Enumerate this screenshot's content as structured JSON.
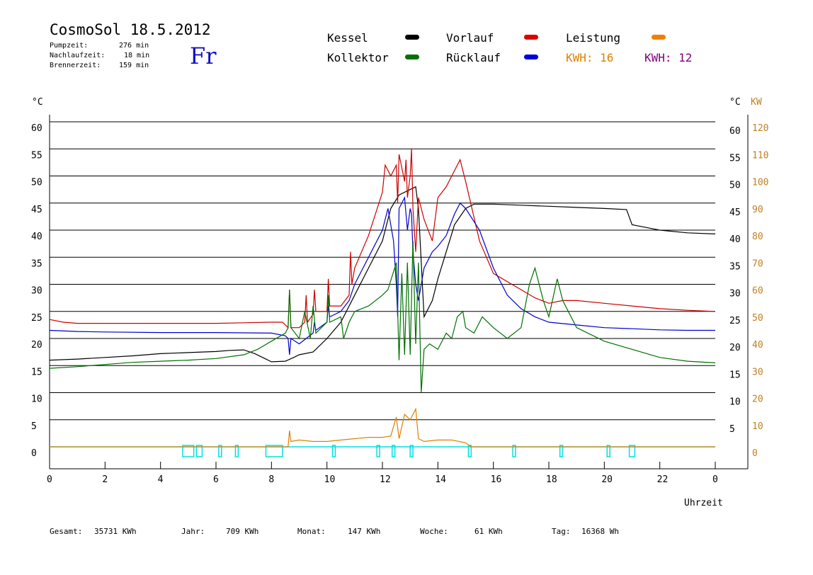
{
  "header": {
    "title": "CosmoSol 18.5.2012",
    "day": "Fr",
    "pumpzeit_label": "Pumpzeit:",
    "pumpzeit_value": "276 min",
    "nachlauf_label": "Nachlaufzeit:",
    "nachlauf_value": "18 min",
    "brenner_label": "Brennerzeit:",
    "brenner_value": "159 min"
  },
  "legend": {
    "kessel": "Kessel",
    "kollektor": "Kollektor",
    "vorlauf": "Vorlauf",
    "ruecklauf": "Rücklauf",
    "leistung": "Leistung",
    "kwh1": "KWH: 16",
    "kwh2": "KWH: 12"
  },
  "footer": {
    "gesamt_label": "Gesamt:",
    "gesamt_value": "35731 KWh",
    "jahr_label": "Jahr:",
    "jahr_value": "709 KWh",
    "monat_label": "Monat:",
    "monat_value": "147 KWh",
    "woche_label": "Woche:",
    "woche_value": "61 KWh",
    "tag_label": "Tag:",
    "tag_value": "16368 Wh"
  },
  "chart_data": {
    "type": "line",
    "xlabel": "Uhrzeit",
    "ylabel_left": "°C",
    "ylabel_right_temp": "°C",
    "ylabel_right_power": "KW",
    "xlim": [
      0,
      24
    ],
    "ylim": [
      0,
      60
    ],
    "xticks": [
      "0",
      "2",
      "4",
      "6",
      "8",
      "10",
      "12",
      "14",
      "16",
      "18",
      "20",
      "22",
      "0"
    ],
    "yticks_left": [
      "0",
      "5",
      "10",
      "15",
      "20",
      "25",
      "30",
      "35",
      "40",
      "45",
      "50",
      "55",
      "60"
    ],
    "yticks_right_temp": [
      "5",
      "10",
      "15",
      "20",
      "25",
      "30",
      "35",
      "40",
      "45",
      "50",
      "55",
      "60"
    ],
    "yticks_right_power": [
      "0",
      "10",
      "20",
      "30",
      "40",
      "50",
      "60",
      "70",
      "80",
      "90",
      "100",
      "110",
      "120"
    ],
    "grid": true,
    "colors": {
      "kessel": "#000000",
      "vorlauf": "#cc0000",
      "ruecklauf": "#0000cc",
      "kollektor": "#007000",
      "leistung": "#e08000",
      "kwh2": "#800080",
      "pump": "#00e0e0",
      "axis_power": "#c08020"
    },
    "series": [
      {
        "name": "Kessel",
        "color": "#000000",
        "x": [
          0,
          1,
          2,
          3,
          4,
          5,
          6,
          6.5,
          7,
          7.4,
          7.8,
          8,
          8.5,
          8.8,
          9,
          9.5,
          10,
          10.5,
          11,
          11.5,
          12,
          12.3,
          12.6,
          13,
          13.2,
          13.3,
          13.5,
          13.8,
          14,
          14.3,
          14.6,
          15,
          15.3,
          16,
          17,
          18,
          19,
          20,
          20.8,
          21,
          21.5,
          22,
          23,
          24
        ],
        "y": [
          16,
          16.2,
          16.5,
          16.8,
          17.2,
          17.4,
          17.6,
          17.8,
          17.9,
          17.2,
          16.2,
          15.7,
          15.8,
          16.5,
          17,
          17.5,
          20,
          23,
          28,
          33,
          38,
          44,
          46.5,
          47.5,
          48,
          44,
          24,
          27,
          31,
          36,
          41,
          44,
          44.8,
          44.8,
          44.6,
          44.4,
          44.2,
          44,
          43.8,
          41,
          40.5,
          40,
          39.5,
          39.3
        ]
      },
      {
        "name": "Vorlauf",
        "color": "#cc0000",
        "x": [
          0,
          0.5,
          1,
          2,
          4,
          6,
          7,
          8,
          8.4,
          8.6,
          8.65,
          8.7,
          9,
          9.2,
          9.25,
          9.3,
          9.5,
          9.55,
          9.6,
          10,
          10.05,
          10.1,
          10.5,
          10.8,
          10.85,
          10.9,
          11,
          11.5,
          12,
          12.1,
          12.3,
          12.5,
          12.55,
          12.6,
          12.8,
          12.85,
          12.9,
          13,
          13.05,
          13.1,
          13.2,
          13.3,
          13.5,
          13.8,
          14,
          14.3,
          14.6,
          14.8,
          15,
          15.5,
          16,
          17,
          17.5,
          18,
          18.5,
          19,
          20,
          21,
          22,
          23,
          24
        ],
        "y": [
          23.5,
          23,
          22.8,
          22.8,
          22.8,
          22.8,
          22.9,
          23,
          23,
          22,
          29,
          22,
          22,
          23,
          28,
          23,
          24.5,
          29,
          25,
          25,
          31,
          26,
          26,
          28,
          36,
          30,
          33,
          39,
          47,
          52,
          50,
          52,
          45,
          54,
          49,
          53,
          46,
          50,
          55,
          44,
          36,
          46,
          42,
          38,
          46,
          48,
          51,
          53,
          49,
          38,
          32,
          29,
          27.5,
          26.5,
          27,
          27,
          26.5,
          26,
          25.5,
          25.2,
          25
        ]
      },
      {
        "name": "Rücklauf",
        "color": "#0000cc",
        "x": [
          0,
          1,
          2,
          4,
          6,
          8,
          8.5,
          8.6,
          8.65,
          8.7,
          9,
          9.5,
          9.55,
          9.6,
          10,
          10.05,
          10.1,
          10.5,
          10.8,
          11,
          11.5,
          12,
          12.2,
          12.4,
          12.5,
          12.55,
          12.6,
          12.8,
          12.9,
          13,
          13.05,
          13.1,
          13.2,
          13.3,
          13.5,
          13.8,
          14,
          14.3,
          14.6,
          14.8,
          15,
          15.5,
          16,
          16.5,
          17,
          17.5,
          18,
          19,
          20,
          21,
          22,
          23,
          24
        ],
        "y": [
          21.5,
          21.3,
          21.2,
          21.1,
          21.1,
          21,
          20.5,
          20,
          17,
          20,
          19,
          21,
          23,
          21.5,
          23,
          26,
          24,
          25,
          27,
          30,
          35,
          40,
          44,
          38,
          30,
          24,
          44,
          46,
          40,
          44,
          43,
          36,
          30,
          27,
          33,
          36,
          37,
          39,
          43,
          45,
          44,
          40,
          33,
          28,
          25.5,
          24,
          23,
          22.5,
          22,
          21.8,
          21.6,
          21.5,
          21.5
        ]
      },
      {
        "name": "Kollektor",
        "color": "#007000",
        "x": [
          0,
          1,
          2,
          3,
          4,
          5,
          6,
          7,
          7.5,
          8,
          8.5,
          8.6,
          8.65,
          8.7,
          9,
          9.2,
          9.4,
          9.5,
          9.6,
          10,
          10.05,
          10.1,
          10.5,
          10.6,
          10.8,
          11,
          11.5,
          12,
          12.2,
          12.5,
          12.6,
          12.7,
          12.8,
          12.9,
          13,
          13.1,
          13.2,
          13.3,
          13.4,
          13.5,
          13.7,
          14,
          14.3,
          14.5,
          14.7,
          14.9,
          15,
          15.3,
          15.6,
          16,
          16.5,
          17,
          17.3,
          17.5,
          17.8,
          18,
          18.3,
          18.5,
          19,
          20,
          21,
          22,
          23,
          24
        ],
        "y": [
          14.5,
          14.8,
          15.2,
          15.6,
          15.8,
          16,
          16.3,
          17,
          18,
          19.5,
          21,
          22,
          29,
          22,
          20,
          25,
          20,
          26,
          21,
          23,
          28,
          23,
          24,
          20,
          23,
          25,
          26,
          28,
          29,
          34,
          16,
          32,
          17,
          34,
          17,
          38,
          19,
          34,
          10,
          18,
          19,
          18,
          21,
          20,
          24,
          25,
          22,
          21,
          24,
          22,
          20,
          22,
          30,
          33,
          27,
          24,
          31,
          27,
          22,
          19.5,
          18,
          16.5,
          15.8,
          15.5
        ]
      },
      {
        "name": "Leistung",
        "color": "#e08000",
        "x": [
          0,
          8,
          8.6,
          8.65,
          8.7,
          9,
          9.5,
          10,
          10.5,
          11,
          11.5,
          12,
          12.3,
          12.5,
          12.6,
          12.8,
          13,
          13.2,
          13.3,
          13.5,
          14,
          14.5,
          15,
          15.2,
          16,
          24
        ],
        "y": [
          0,
          0,
          0,
          6,
          2,
          2.5,
          2,
          2,
          2.5,
          3,
          3.5,
          3.5,
          4,
          11,
          3,
          12,
          10,
          14,
          3,
          2,
          2.5,
          2.5,
          1.5,
          0,
          0,
          0
        ],
        "axis": "KW"
      }
    ],
    "pump_on_intervals": [
      [
        4.8,
        5.2
      ],
      [
        5.3,
        5.5
      ],
      [
        6.1,
        6.2
      ],
      [
        6.7,
        6.8
      ],
      [
        7.8,
        8.4
      ],
      [
        10.2,
        10.3
      ],
      [
        11.8,
        11.9
      ],
      [
        12.35,
        12.45
      ],
      [
        13.0,
        13.1
      ],
      [
        15.1,
        15.2
      ],
      [
        16.7,
        16.8
      ],
      [
        18.4,
        18.5
      ],
      [
        20.1,
        20.2
      ],
      [
        20.9,
        21.1
      ]
    ]
  }
}
